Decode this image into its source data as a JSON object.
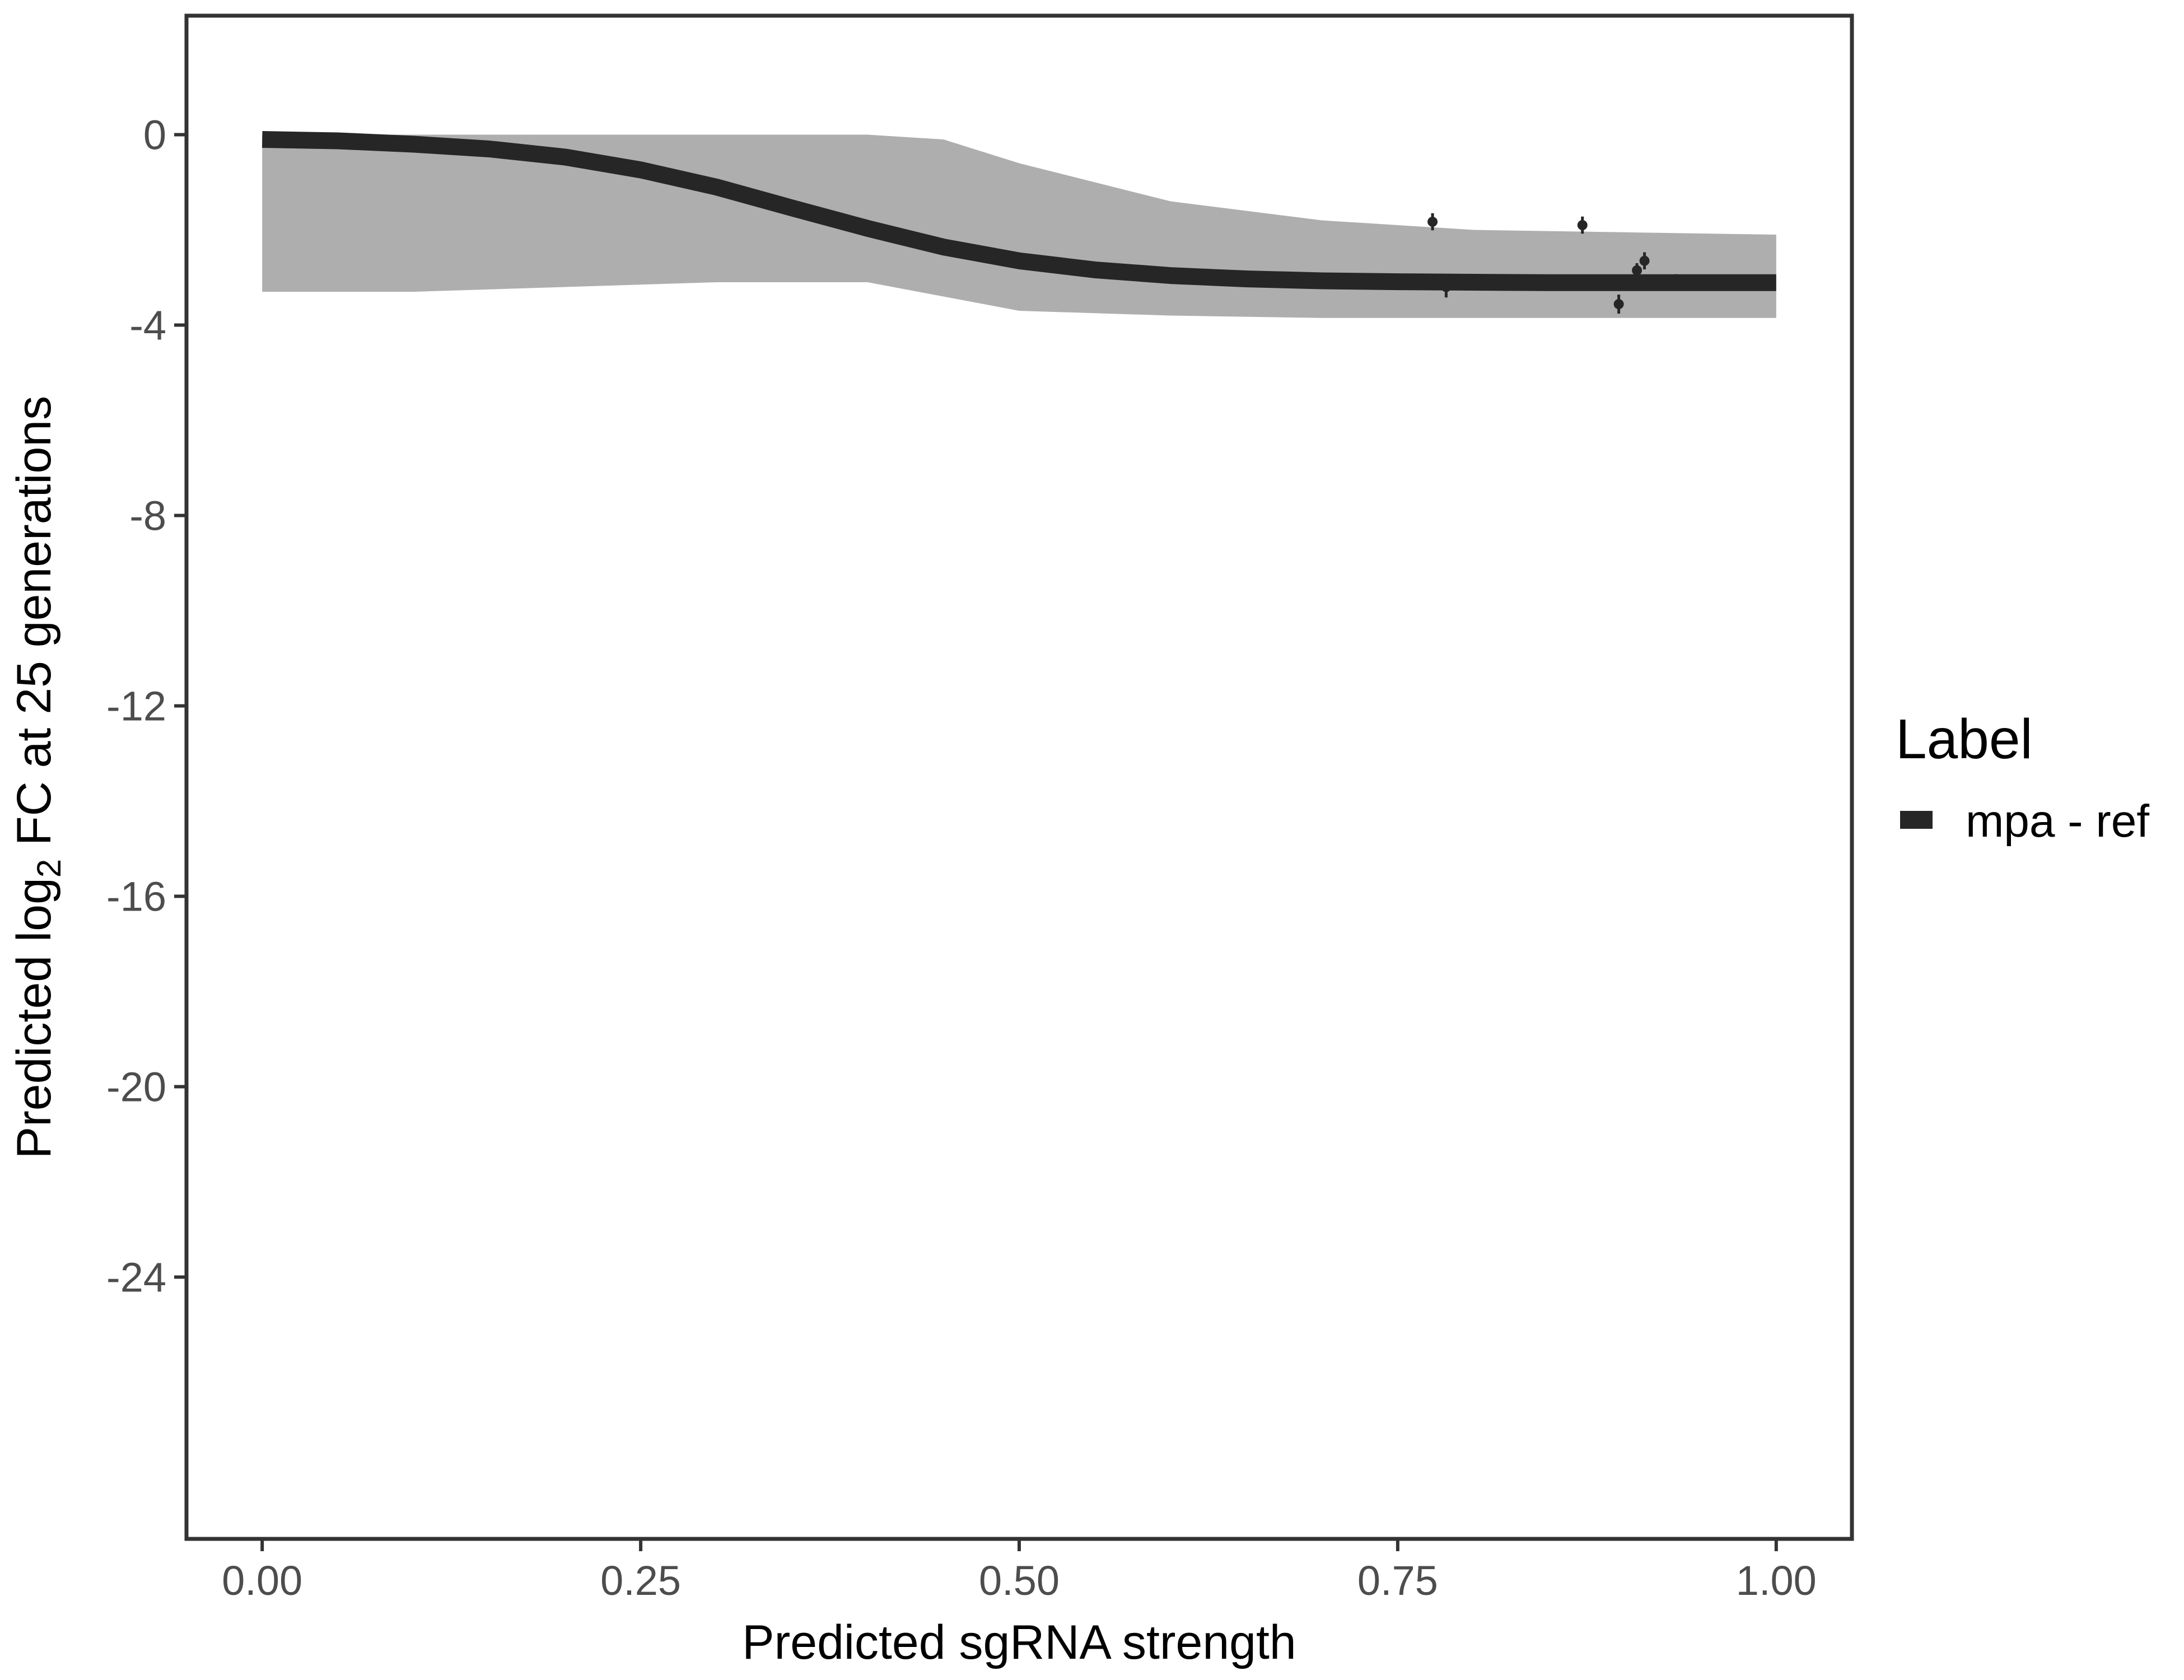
{
  "chart_data": {
    "type": "line",
    "xlabel": "Predicted sgRNA strength",
    "ylabel": {
      "prefix": "Predicted  log",
      "subscript": "2",
      "suffix": " FC at 25 generations"
    },
    "xlim": [
      -0.05,
      1.05
    ],
    "ylim": [
      -29.5,
      2.5
    ],
    "x_ticks": [
      {
        "value": 0.0,
        "label": "0.00"
      },
      {
        "value": 0.25,
        "label": "0.25"
      },
      {
        "value": 0.5,
        "label": "0.50"
      },
      {
        "value": 0.75,
        "label": "0.75"
      },
      {
        "value": 1.0,
        "label": "1.00"
      }
    ],
    "y_ticks": [
      {
        "value": 0,
        "label": "0"
      },
      {
        "value": -4,
        "label": "-4"
      },
      {
        "value": -8,
        "label": "-8"
      },
      {
        "value": -12,
        "label": "-12"
      },
      {
        "value": -16,
        "label": "-16"
      },
      {
        "value": -20,
        "label": "-20"
      },
      {
        "value": -24,
        "label": "-24"
      }
    ],
    "grid": false,
    "legend": {
      "title": "Label",
      "position": "right",
      "entries": [
        {
          "label": "mpa - ref",
          "color": "#262626"
        }
      ]
    },
    "fit_line": {
      "name": "mpa - ref",
      "color": "#262626",
      "x": [
        0.0,
        0.05,
        0.1,
        0.15,
        0.2,
        0.25,
        0.3,
        0.35,
        0.4,
        0.45,
        0.5,
        0.55,
        0.6,
        0.65,
        0.7,
        0.75,
        0.8,
        0.85,
        0.9,
        0.95,
        1.0
      ],
      "y": [
        -0.1,
        -0.13,
        -0.2,
        -0.3,
        -0.47,
        -0.74,
        -1.1,
        -1.54,
        -1.97,
        -2.36,
        -2.65,
        -2.84,
        -2.96,
        -3.03,
        -3.07,
        -3.09,
        -3.1,
        -3.11,
        -3.11,
        -3.11,
        -3.11
      ]
    },
    "posterior_band": {
      "color": "#aaaaaa",
      "x": [
        0.0,
        0.1,
        0.2,
        0.3,
        0.4,
        0.45,
        0.5,
        0.6,
        0.7,
        0.8,
        0.9,
        1.0
      ],
      "upper": [
        0.0,
        0.0,
        0.0,
        0.0,
        0.0,
        -0.1,
        -0.6,
        -1.4,
        -1.8,
        -2.0,
        -2.05,
        -2.1
      ],
      "lower": [
        -3.3,
        -3.3,
        -3.2,
        -3.1,
        -3.1,
        -3.4,
        -3.7,
        -3.8,
        -3.85,
        -3.85,
        -3.85,
        -3.85
      ]
    },
    "points": [
      {
        "x": 0.773,
        "y": -1.83,
        "err": 0.18
      },
      {
        "x": 0.782,
        "y": -3.2,
        "err": 0.22
      },
      {
        "x": 0.872,
        "y": -1.9,
        "err": 0.18
      },
      {
        "x": 0.896,
        "y": -3.56,
        "err": 0.2
      },
      {
        "x": 0.908,
        "y": -2.85,
        "err": 0.15
      },
      {
        "x": 0.913,
        "y": -2.65,
        "err": 0.18
      },
      {
        "x": 0.918,
        "y": -3.1,
        "err": 0.15
      },
      {
        "x": 0.934,
        "y": -3.05,
        "err": 0.12
      }
    ]
  }
}
